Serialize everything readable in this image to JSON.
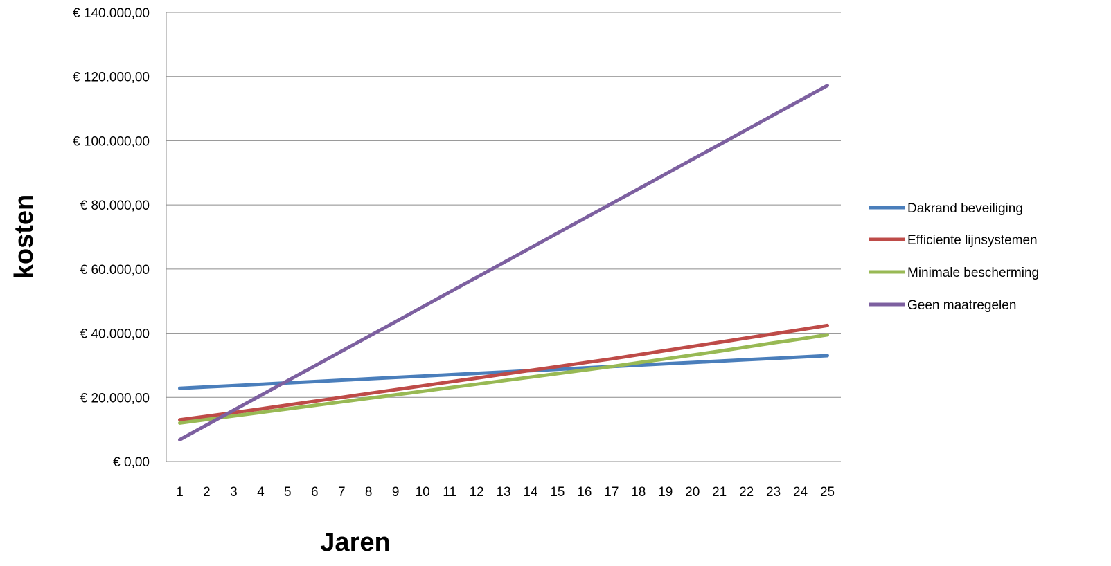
{
  "chart_data": {
    "type": "line",
    "title": "",
    "xlabel": "Jaren",
    "ylabel": "kosten",
    "categories": [
      "1",
      "2",
      "3",
      "4",
      "5",
      "6",
      "7",
      "8",
      "9",
      "10",
      "11",
      "12",
      "13",
      "14",
      "15",
      "16",
      "17",
      "18",
      "19",
      "20",
      "21",
      "22",
      "23",
      "24",
      "25"
    ],
    "y_ticks": [
      {
        "value": 0,
        "label": "€ 0,00"
      },
      {
        "value": 20000,
        "label": "€ 20.000,00"
      },
      {
        "value": 40000,
        "label": "€ 40.000,00"
      },
      {
        "value": 60000,
        "label": "€ 60.000,00"
      },
      {
        "value": 80000,
        "label": "€ 80.000,00"
      },
      {
        "value": 100000,
        "label": "€ 100.000,00"
      },
      {
        "value": 120000,
        "label": "€ 120.000,00"
      },
      {
        "value": 140000,
        "label": "€ 140.000,00"
      }
    ],
    "ylim": [
      0,
      140000
    ],
    "grid": "horizontal",
    "legend_position": "right",
    "series": [
      {
        "name": "Dakrand beveiliging",
        "color": "#4a7ebb",
        "values": [
          22800,
          23225,
          23650,
          24075,
          24500,
          24925,
          25350,
          25775,
          26200,
          26625,
          27050,
          27475,
          27900,
          28325,
          28750,
          29175,
          29600,
          30025,
          30450,
          30875,
          31300,
          31725,
          32150,
          32575,
          33000
        ]
      },
      {
        "name": "Efficiente lijnsystemen",
        "color": "#be4b48",
        "values": [
          13000,
          14100,
          15250,
          16400,
          17600,
          18800,
          20000,
          21200,
          22400,
          23600,
          24800,
          26000,
          27200,
          28400,
          29600,
          30800,
          32000,
          33300,
          34600,
          35900,
          37200,
          38500,
          39800,
          41100,
          42400
        ]
      },
      {
        "name": "Minimale bescherming",
        "color": "#98b954",
        "values": [
          12000,
          13100,
          14200,
          15300,
          16400,
          17500,
          18600,
          19700,
          20800,
          21900,
          23000,
          24100,
          25200,
          26300,
          27400,
          28500,
          29600,
          30800,
          32000,
          33200,
          34400,
          35700,
          37000,
          38200,
          39500
        ]
      },
      {
        "name": "Geen maatregelen",
        "color": "#7d60a0",
        "values": [
          6800,
          11400,
          16000,
          20600,
          25200,
          29800,
          34400,
          39000,
          43600,
          48200,
          52800,
          57400,
          62000,
          66600,
          71200,
          75800,
          80400,
          85000,
          89600,
          94200,
          98800,
          103400,
          108000,
          112600,
          117200
        ]
      }
    ]
  }
}
